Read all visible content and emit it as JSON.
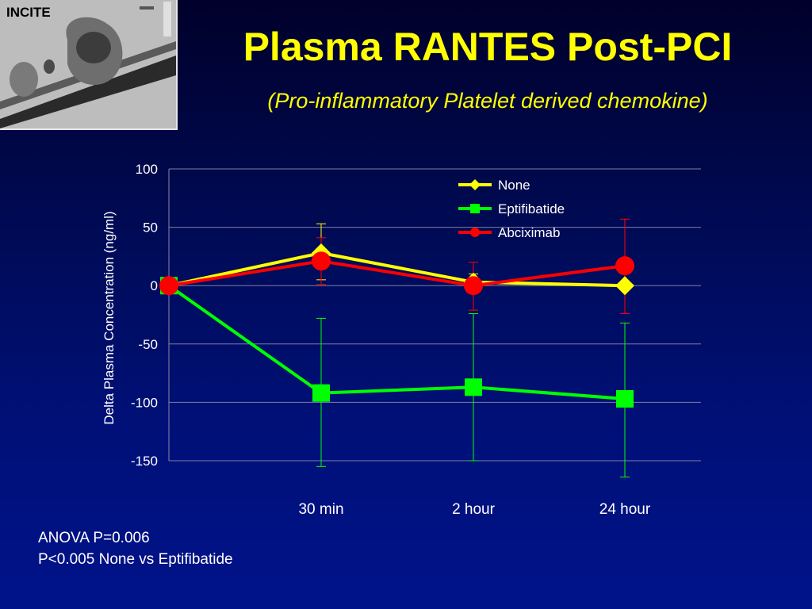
{
  "header": {
    "logo_label": "INCITE",
    "title": "Plasma RANTES Post-PCI",
    "subtitle": "(Pro-inflammatory Platelet derived chemokine)"
  },
  "chart_data": {
    "type": "line",
    "title": "",
    "xlabel": "",
    "ylabel": "Delta Plasma Concentration (ng/ml)",
    "ylim": [
      -150,
      100
    ],
    "yticks": [
      100,
      50,
      0,
      -50,
      -100,
      -150
    ],
    "categories": [
      "",
      "30 min",
      "2 hour",
      "24 hour"
    ],
    "grid": true,
    "legend_position": "top-right",
    "series": [
      {
        "name": "None",
        "color": "#ffff00",
        "marker": "diamond",
        "values": [
          0,
          28,
          3,
          0
        ],
        "err_upper": [
          null,
          53,
          10,
          null
        ],
        "err_lower": [
          null,
          5,
          -3,
          null
        ]
      },
      {
        "name": "Eptifibatide",
        "color": "#00ff00",
        "marker": "square",
        "values": [
          0,
          -92,
          -87,
          -97
        ],
        "err_upper": [
          null,
          -28,
          -24,
          -32
        ],
        "err_lower": [
          null,
          -155,
          -150,
          -164
        ]
      },
      {
        "name": "Abciximab",
        "color": "#ff0000",
        "marker": "circle",
        "values": [
          0,
          21,
          0,
          17
        ],
        "err_upper": [
          null,
          41,
          20,
          57
        ],
        "err_lower": [
          null,
          1,
          -21,
          -24
        ]
      }
    ]
  },
  "footer": {
    "anova": "ANOVA P=0.006",
    "pvalue": "P<0.005 None vs Eptifibatide"
  }
}
